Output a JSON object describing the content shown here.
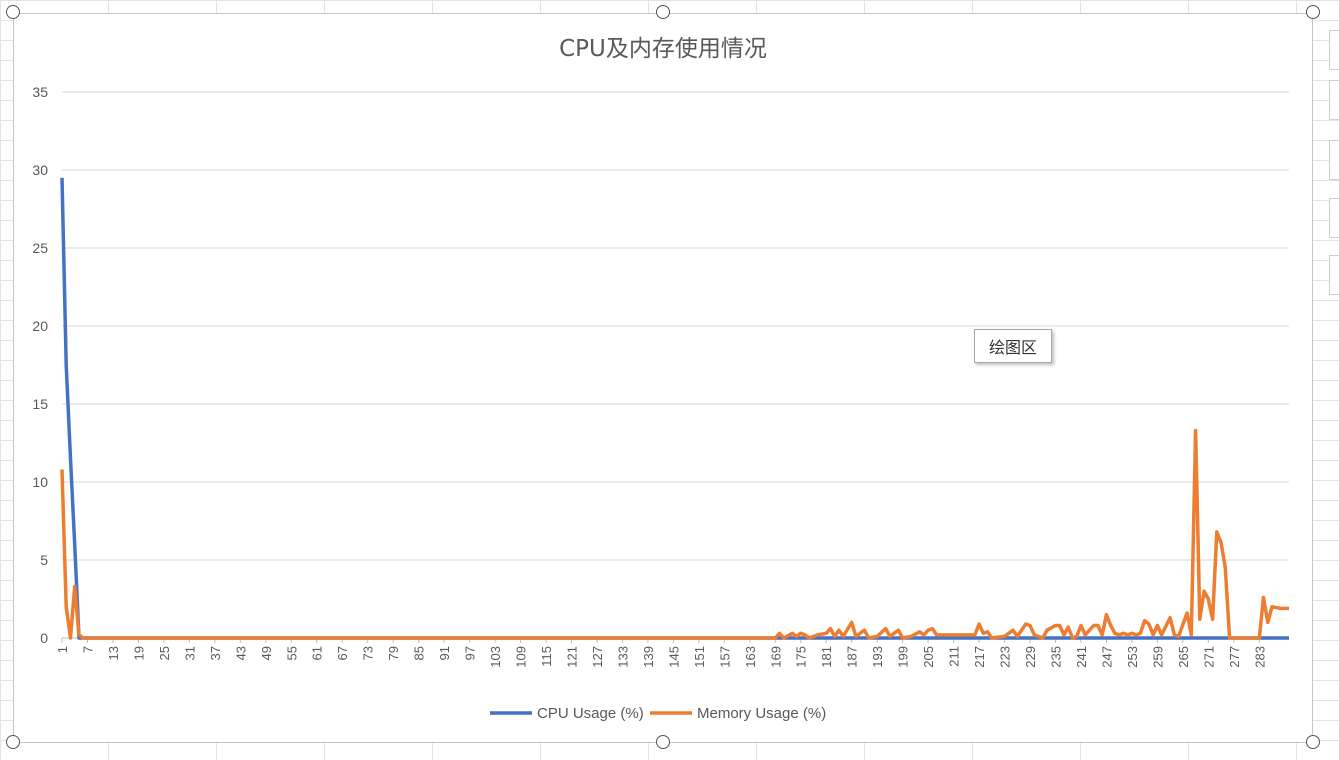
{
  "chart_data": {
    "type": "line",
    "title": "CPU及内存使用情况",
    "xlabel": "",
    "ylabel": "",
    "ylim": [
      0,
      35
    ],
    "yticks": [
      0,
      5,
      10,
      15,
      20,
      25,
      30,
      35
    ],
    "x_tick_labels": [
      "1",
      "7",
      "13",
      "19",
      "25",
      "31",
      "37",
      "43",
      "49",
      "55",
      "61",
      "67",
      "73",
      "79",
      "85",
      "91",
      "97",
      "103",
      "109",
      "115",
      "121",
      "127",
      "133",
      "139",
      "145",
      "151",
      "157",
      "163",
      "169",
      "175",
      "181",
      "187",
      "193",
      "199",
      "205",
      "211",
      "217",
      "223",
      "229",
      "235",
      "241",
      "247",
      "253",
      "259",
      "265",
      "271",
      "277",
      "283"
    ],
    "x_range": [
      1,
      290
    ],
    "grid": "horizontal",
    "legend_position": "bottom",
    "series": [
      {
        "name": "CPU Usage (%)",
        "color": "#4472c4",
        "points": [
          [
            1,
            29.5
          ],
          [
            2,
            17.5
          ],
          [
            3,
            11.5
          ],
          [
            4,
            6
          ],
          [
            5,
            0
          ],
          [
            290,
            0
          ]
        ]
      },
      {
        "name": "Memory Usage (%)",
        "color": "#ed7d31",
        "points": [
          [
            1,
            10.8
          ],
          [
            2,
            2
          ],
          [
            3,
            0
          ],
          [
            4,
            3.3
          ],
          [
            5,
            0.2
          ],
          [
            6,
            0
          ],
          [
            169,
            0
          ],
          [
            170,
            0.3
          ],
          [
            171,
            0
          ],
          [
            173,
            0.3
          ],
          [
            174,
            0.1
          ],
          [
            175,
            0.3
          ],
          [
            176,
            0.2
          ],
          [
            177,
            0
          ],
          [
            179,
            0.2
          ],
          [
            181,
            0.3
          ],
          [
            182,
            0.6
          ],
          [
            183,
            0.1
          ],
          [
            184,
            0.5
          ],
          [
            185,
            0.1
          ],
          [
            187,
            1.0
          ],
          [
            188,
            0.1
          ],
          [
            190,
            0.5
          ],
          [
            191,
            0
          ],
          [
            193,
            0.1
          ],
          [
            195,
            0.6
          ],
          [
            196,
            0.1
          ],
          [
            198,
            0.5
          ],
          [
            199,
            0
          ],
          [
            201,
            0.1
          ],
          [
            203,
            0.4
          ],
          [
            204,
            0.2
          ],
          [
            205,
            0.5
          ],
          [
            206,
            0.6
          ],
          [
            207,
            0.2
          ],
          [
            211,
            0.2
          ],
          [
            216,
            0.2
          ],
          [
            217,
            0.9
          ],
          [
            218,
            0.3
          ],
          [
            219,
            0.4
          ],
          [
            220,
            0
          ],
          [
            223,
            0.1
          ],
          [
            225,
            0.5
          ],
          [
            226,
            0.1
          ],
          [
            228,
            0.9
          ],
          [
            229,
            0.8
          ],
          [
            230,
            0.2
          ],
          [
            232,
            0
          ],
          [
            233,
            0.5
          ],
          [
            235,
            0.8
          ],
          [
            236,
            0.8
          ],
          [
            237,
            0.2
          ],
          [
            238,
            0.7
          ],
          [
            239,
            0
          ],
          [
            240,
            0.1
          ],
          [
            241,
            0.8
          ],
          [
            242,
            0.2
          ],
          [
            244,
            0.8
          ],
          [
            245,
            0.8
          ],
          [
            246,
            0.2
          ],
          [
            247,
            1.5
          ],
          [
            248,
            0.8
          ],
          [
            249,
            0.3
          ],
          [
            250,
            0.2
          ],
          [
            251,
            0.3
          ],
          [
            252,
            0.2
          ],
          [
            253,
            0.3
          ],
          [
            254,
            0.2
          ],
          [
            255,
            0.3
          ],
          [
            256,
            1.1
          ],
          [
            257,
            0.9
          ],
          [
            258,
            0.2
          ],
          [
            259,
            0.8
          ],
          [
            260,
            0.2
          ],
          [
            262,
            1.3
          ],
          [
            263,
            0.2
          ],
          [
            264,
            0.1
          ],
          [
            266,
            1.6
          ],
          [
            267,
            0.2
          ],
          [
            268,
            13.3
          ],
          [
            269,
            1.2
          ],
          [
            270,
            3
          ],
          [
            271,
            2.5
          ],
          [
            272,
            1.2
          ],
          [
            273,
            6.8
          ],
          [
            274,
            6.1
          ],
          [
            275,
            4.5
          ],
          [
            276,
            0
          ],
          [
            283,
            0
          ],
          [
            284,
            2.6
          ],
          [
            285,
            1.0
          ],
          [
            286,
            2.0
          ],
          [
            288,
            1.9
          ],
          [
            290,
            1.9
          ]
        ]
      }
    ]
  },
  "ui": {
    "tooltip": "绘图区",
    "colors": {
      "grid": "#d9d9d9",
      "axis": "#bfbfbf",
      "tick_text": "#595959",
      "title_text": "#595959"
    }
  }
}
